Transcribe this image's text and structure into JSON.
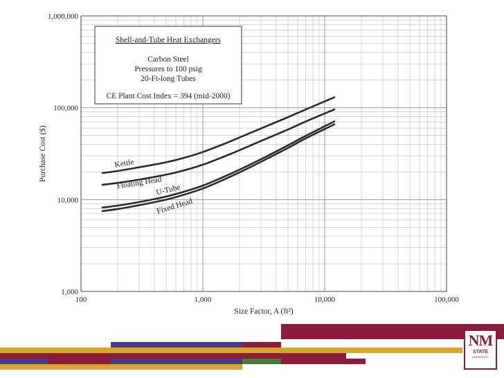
{
  "chart_data": {
    "type": "line",
    "log_x": true,
    "log_y": true,
    "xlim": [
      100,
      100000
    ],
    "ylim": [
      1000,
      1000000
    ],
    "xlabel": "Size Factor, A (ft²)",
    "ylabel": "Purchase Cost ($)",
    "x_ticks": [
      {
        "value": 100,
        "label": "100"
      },
      {
        "value": 1000,
        "label": "1,000"
      },
      {
        "value": 10000,
        "label": "10,000"
      },
      {
        "value": 100000,
        "label": "100,000"
      }
    ],
    "y_ticks": [
      {
        "value": 1000,
        "label": "1,000"
      },
      {
        "value": 10000,
        "label": "10,000"
      },
      {
        "value": 100000,
        "label": "100,000"
      },
      {
        "value": 1000000,
        "label": "1,000,000"
      }
    ],
    "grid": true,
    "legend_box": {
      "title": "Shell-and-Tube Heat Exchangers",
      "lines": [
        "Carbon Steel",
        "Pressures to 100 psig",
        "20-Ft-long Tubes"
      ],
      "footer": "CE Plant Cost Index = 394 (mid-2000)"
    },
    "series": [
      {
        "name": "Kettle",
        "x": [
          150,
          200,
          300,
          500,
          700,
          1000,
          1500,
          2000,
          3000,
          5000,
          7000,
          12000
        ],
        "y": [
          19500,
          20500,
          22500,
          25500,
          28500,
          33000,
          40500,
          47500,
          59500,
          79000,
          96000,
          130000
        ]
      },
      {
        "name": "Floating Head",
        "x": [
          150,
          200,
          300,
          500,
          700,
          1000,
          1500,
          2000,
          3000,
          5000,
          7000,
          12000
        ],
        "y": [
          14500,
          15200,
          16500,
          18700,
          20800,
          24000,
          29500,
          34500,
          43500,
          58000,
          71000,
          96000
        ]
      },
      {
        "name": "U-Tube",
        "x": [
          150,
          200,
          300,
          500,
          700,
          1000,
          1500,
          2000,
          3000,
          5000,
          7000,
          12000
        ],
        "y": [
          8200,
          8600,
          9400,
          10800,
          12200,
          14200,
          17800,
          21200,
          27500,
          39000,
          49500,
          71000
        ]
      },
      {
        "name": "Fixed Head",
        "x": [
          150,
          200,
          300,
          500,
          700,
          1000,
          1500,
          2000,
          3000,
          5000,
          7000,
          12000
        ],
        "y": [
          7500,
          7900,
          8700,
          10000,
          11300,
          13200,
          16600,
          19800,
          25800,
          36500,
          46500,
          66000
        ]
      }
    ],
    "curve_labels": [
      {
        "series": "Kettle",
        "text": "Kettle",
        "x": 190,
        "y": 22500,
        "angle": -9
      },
      {
        "series": "Floating Head",
        "text": "Floating Head",
        "x": 198,
        "y": 13200,
        "angle": -9
      },
      {
        "series": "U-Tube",
        "text": "U-Tube",
        "x": 420,
        "y": 11200,
        "angle": -14
      },
      {
        "series": "Fixed Head",
        "text": "Fixed Head",
        "x": 425,
        "y": 7000,
        "angle": -17
      }
    ]
  },
  "footer": {
    "logo_nm": "NM",
    "logo_state": "STATE",
    "logo_univ": "UNIVERSITY",
    "colors": {
      "maroon": "#8b1c3c",
      "gold": "#d9a62e",
      "purple": "#4b3a8c",
      "green": "#4a7a3a"
    }
  }
}
